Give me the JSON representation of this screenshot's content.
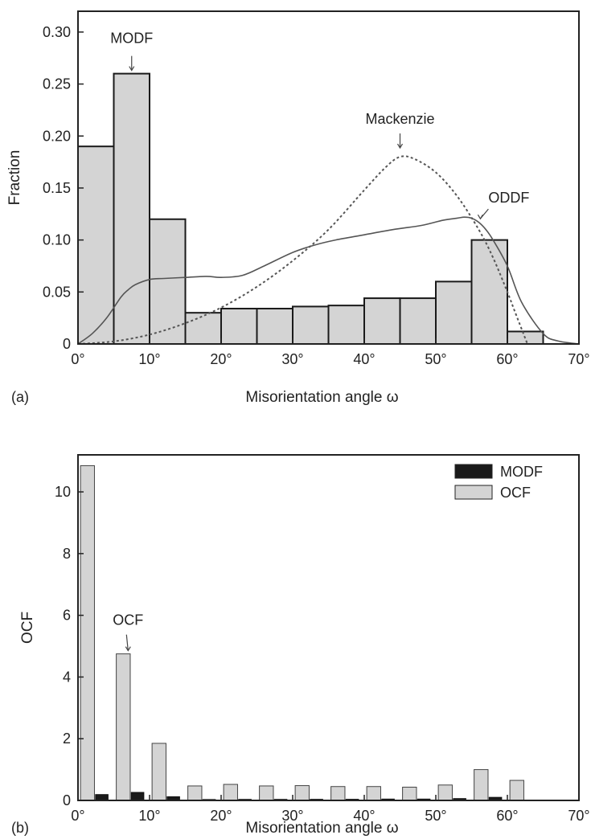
{
  "chart_data": [
    {
      "panel": "(a)",
      "type": "bar",
      "xlabel": "Misorientation angle ω",
      "ylabel": "Fraction",
      "xlim": [
        0,
        70
      ],
      "ylim": [
        0,
        0.32
      ],
      "xticks": [
        0,
        10,
        20,
        30,
        40,
        50,
        60,
        70
      ],
      "xtick_labels": [
        "0°",
        "10°",
        "20°",
        "30°",
        "40°",
        "50°",
        "60°",
        "70°"
      ],
      "yticks": [
        0,
        0.05,
        0.1,
        0.15,
        0.2,
        0.25,
        0.3
      ],
      "ytick_labels": [
        "0",
        "0.05",
        "0.10",
        "0.15",
        "0.20",
        "0.25",
        "0.30"
      ],
      "grid": false,
      "colors": {
        "bar_fill": "#d4d4d4",
        "bar_edge": "#1a1a1a",
        "line": "#555555",
        "dotted": "#555555"
      },
      "bins": [
        {
          "from": 0,
          "to": 5,
          "value": 0.19
        },
        {
          "from": 5,
          "to": 10,
          "value": 0.26
        },
        {
          "from": 10,
          "to": 15,
          "value": 0.12
        },
        {
          "from": 15,
          "to": 20,
          "value": 0.03
        },
        {
          "from": 20,
          "to": 25,
          "value": 0.034
        },
        {
          "from": 25,
          "to": 30,
          "value": 0.034
        },
        {
          "from": 30,
          "to": 35,
          "value": 0.036
        },
        {
          "from": 35,
          "to": 40,
          "value": 0.037
        },
        {
          "from": 40,
          "to": 45,
          "value": 0.044
        },
        {
          "from": 45,
          "to": 50,
          "value": 0.044
        },
        {
          "from": 50,
          "to": 55,
          "value": 0.06
        },
        {
          "from": 55,
          "to": 60,
          "value": 0.1
        },
        {
          "from": 60,
          "to": 65,
          "value": 0.012
        }
      ],
      "series": [
        {
          "name": "ODDF",
          "style": "solid",
          "x": [
            0,
            2,
            4,
            6,
            7,
            8,
            10,
            12,
            15,
            18,
            20,
            23,
            26,
            30,
            33,
            36,
            40,
            44,
            48,
            51,
            53,
            54,
            55,
            56,
            57,
            58,
            60,
            62,
            65,
            67,
            70
          ],
          "y": [
            0,
            0.01,
            0.025,
            0.045,
            0.052,
            0.057,
            0.062,
            0.063,
            0.064,
            0.065,
            0.064,
            0.066,
            0.075,
            0.088,
            0.095,
            0.1,
            0.105,
            0.11,
            0.114,
            0.119,
            0.121,
            0.122,
            0.121,
            0.117,
            0.11,
            0.1,
            0.075,
            0.04,
            0.01,
            0.003,
            0
          ]
        },
        {
          "name": "Mackenzie",
          "style": "dotted",
          "x": [
            0,
            5,
            10,
            15,
            20,
            25,
            30,
            35,
            40,
            43,
            45,
            47,
            50,
            53,
            56,
            58,
            60,
            61,
            62.8
          ],
          "y": [
            0,
            0.0025,
            0.009,
            0.02,
            0.035,
            0.055,
            0.08,
            0.11,
            0.148,
            0.17,
            0.18,
            0.178,
            0.165,
            0.142,
            0.11,
            0.083,
            0.05,
            0.032,
            0
          ]
        }
      ],
      "annotations": [
        {
          "text": "MODF",
          "x": 7.5,
          "y": 0.26
        },
        {
          "text": "Mackenzie",
          "x": 45,
          "y": 0.187
        },
        {
          "text": "ODDF",
          "x": 56,
          "y": 0.122
        }
      ]
    },
    {
      "panel": "(b)",
      "type": "bar",
      "xlabel": "Misorientation angle ω",
      "ylabel": "OCF",
      "xlim": [
        0,
        70
      ],
      "ylim": [
        0,
        11.2
      ],
      "xticks": [
        0,
        10,
        20,
        30,
        40,
        50,
        60,
        70
      ],
      "xtick_labels": [
        "0°",
        "10°",
        "20°",
        "30°",
        "40°",
        "50°",
        "60°",
        "70°"
      ],
      "yticks": [
        0,
        2,
        4,
        6,
        8,
        10
      ],
      "ytick_labels": [
        "0",
        "2",
        "4",
        "6",
        "8",
        "10"
      ],
      "grid": false,
      "legend": {
        "placement": "top-right"
      },
      "categories": [
        "0–5°",
        "5–10°",
        "10–15°",
        "15–20°",
        "20–25°",
        "25–30°",
        "30–35°",
        "35–40°",
        "40–45°",
        "45–50°",
        "50–55°",
        "55–60°",
        "60–65°"
      ],
      "series": [
        {
          "name": "MODF",
          "color": "#1a1a1a",
          "values": [
            0.19,
            0.26,
            0.12,
            0.03,
            0.034,
            0.034,
            0.036,
            0.037,
            0.044,
            0.044,
            0.06,
            0.1,
            0.012
          ]
        },
        {
          "name": "OCF",
          "color": "#d4d4d4",
          "values": [
            10.85,
            4.75,
            1.85,
            0.47,
            0.52,
            0.47,
            0.48,
            0.45,
            0.45,
            0.43,
            0.5,
            1.0,
            0.65
          ]
        }
      ],
      "annotations": [
        {
          "text": "OCF",
          "x": 7.0,
          "y": 4.75
        }
      ]
    }
  ]
}
